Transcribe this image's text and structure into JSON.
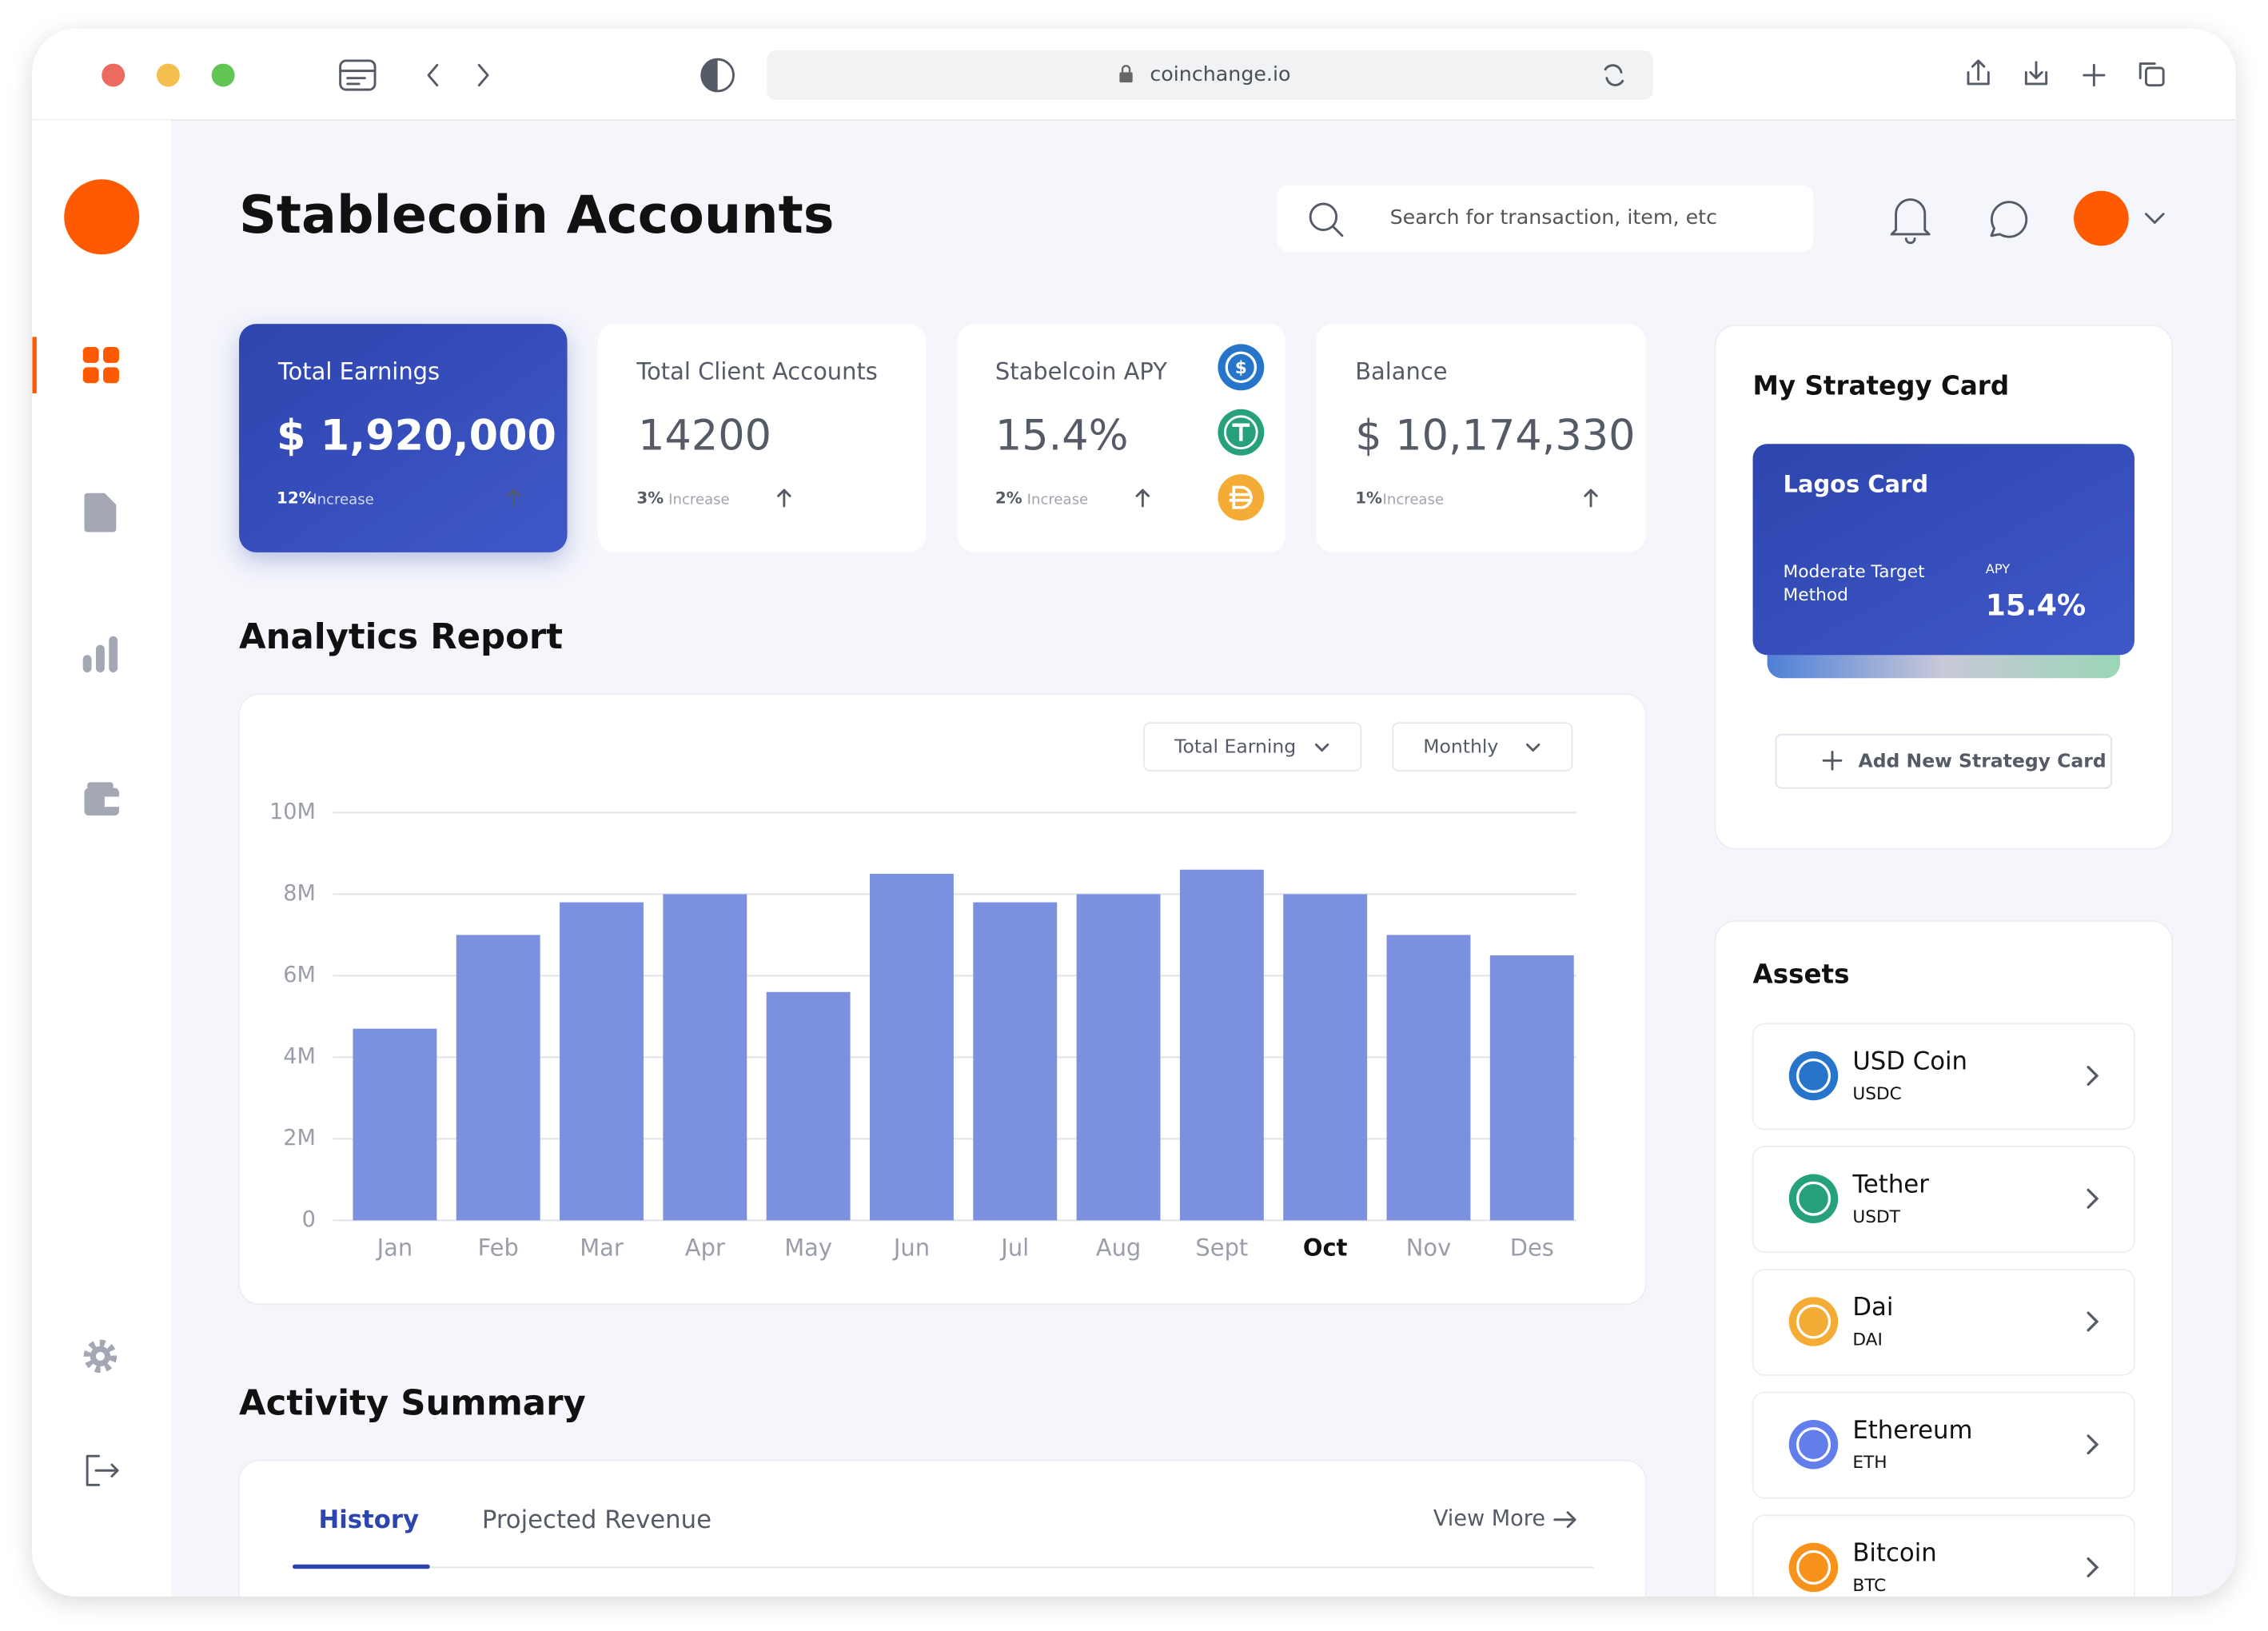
{
  "browser": {
    "url": "coinchange.io"
  },
  "header": {
    "title": "Stablecoin Accounts",
    "search_placeholder": "Search for transaction, item, etc"
  },
  "stats": [
    {
      "label": "Total Earnings",
      "value": "$ 1,920,000",
      "change": "12%",
      "change_label": "Increase"
    },
    {
      "label": "Total Client Accounts",
      "value": "14200",
      "change": "3%",
      "change_label": "Increase"
    },
    {
      "label": "Stabelcoin APY",
      "value": "15.4%",
      "change": "2%",
      "change_label": "Increase"
    },
    {
      "label": "Balance",
      "value": "$ 10,174,330",
      "change": "1%",
      "change_label": "Increase"
    }
  ],
  "analytics": {
    "title": "Analytics Report",
    "filters": [
      "Total Earning",
      "Monthly"
    ]
  },
  "chart_data": {
    "type": "bar",
    "categories": [
      "Jan",
      "Feb",
      "Mar",
      "Apr",
      "May",
      "Jun",
      "Jul",
      "Aug",
      "Sept",
      "Oct",
      "Nov",
      "Des"
    ],
    "values": [
      4.7,
      7.0,
      7.8,
      8.0,
      5.6,
      8.5,
      7.8,
      8.0,
      8.6,
      8.0,
      7.0,
      6.5
    ],
    "color": "#7b91e0",
    "ylim": [
      0,
      10
    ],
    "yticks": [
      0,
      {
        "value": 2,
        "label": "2M"
      },
      {
        "value": 4,
        "label": "4M"
      },
      {
        "value": 6,
        "label": "6M"
      },
      {
        "value": 8,
        "label": "8M"
      },
      {
        "value": 10,
        "label": "10M"
      }
    ],
    "grid": true,
    "highlight_index": 9
  },
  "activity": {
    "title": "Activity Summary",
    "tabs": [
      "History",
      "Projected Revenue"
    ],
    "view_more": "View More"
  },
  "strategy": {
    "title": "My Strategy Card",
    "card_name": "Lagos Card",
    "method": [
      "Moderate Target",
      "Method"
    ],
    "apy_label": "APY",
    "apy": "15.4%",
    "add_button": "Add New Strategy Card"
  },
  "assets": {
    "title": "Assets",
    "items": [
      {
        "name": "USD Coin",
        "symbol": "USDC",
        "color": "#2775ca"
      },
      {
        "name": "Tether",
        "symbol": "USDT",
        "color": "#26a17b"
      },
      {
        "name": "Dai",
        "symbol": "DAI",
        "color": "#f5ac37"
      },
      {
        "name": "Ethereum",
        "symbol": "ETH",
        "color": "#627eea"
      },
      {
        "name": "Bitcoin",
        "symbol": "BTC",
        "color": "#f7931a"
      }
    ]
  }
}
